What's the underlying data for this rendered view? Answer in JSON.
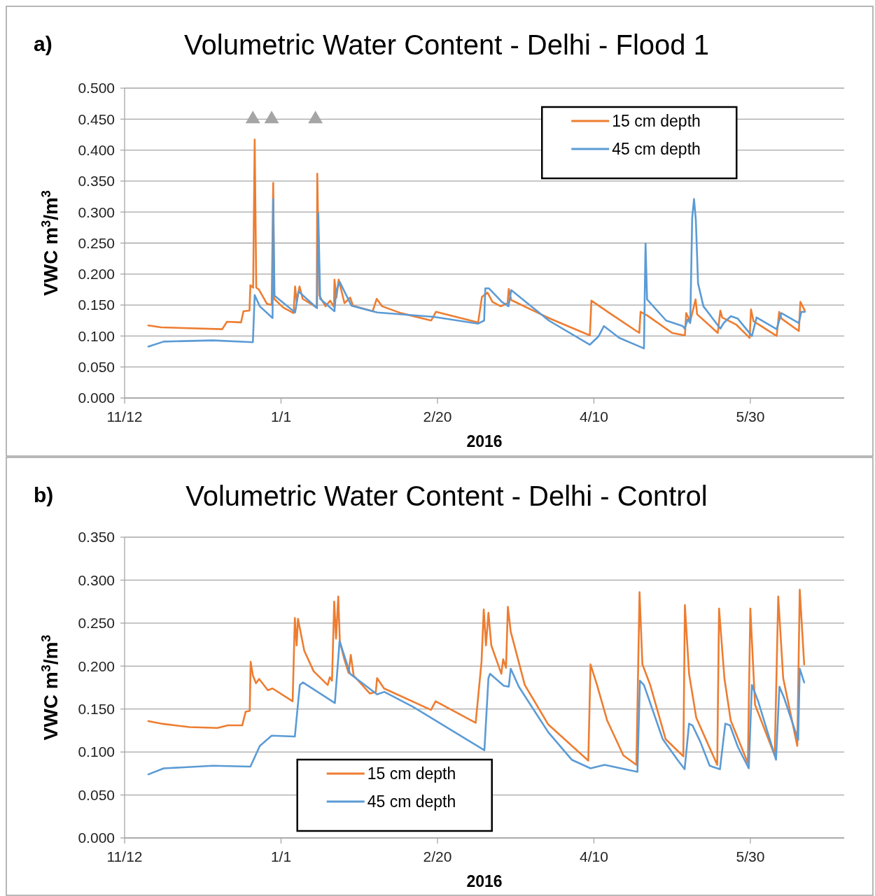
{
  "chart_data": [
    {
      "type": "line",
      "title": "Volumetric Water Content - Delhi - Flood 1",
      "annotations": [
        "a)"
      ],
      "xlabel": "2016",
      "ylabel": "VWC  m$^{3}$/m$^{3}$",
      "xlim": [
        "2015-11-12",
        "2016-06-29"
      ],
      "xticks": [
        {
          "value": "2015-11-12",
          "label": "11/12"
        },
        {
          "value": "2016-01-01",
          "label": "1/1"
        },
        {
          "value": "2016-02-20",
          "label": "2/20"
        },
        {
          "value": "2016-04-10",
          "label": "4/10"
        },
        {
          "value": "2016-05-30",
          "label": "5/30"
        }
      ],
      "ylim": [
        0,
        0.5
      ],
      "yticks": [
        {
          "value": 0,
          "label": "0.000"
        },
        {
          "value": 0.05,
          "label": "0.050"
        },
        {
          "value": 0.1,
          "label": "0.100"
        },
        {
          "value": 0.15,
          "label": "0.150"
        },
        {
          "value": 0.2,
          "label": "0.200"
        },
        {
          "value": 0.25,
          "label": "0.250"
        },
        {
          "value": 0.3,
          "label": "0.300"
        },
        {
          "value": 0.35,
          "label": "0.350"
        },
        {
          "value": 0.4,
          "label": "0.400"
        },
        {
          "value": 0.45,
          "label": "0.450"
        },
        {
          "value": 0.5,
          "label": "0.500"
        }
      ],
      "grid": "y",
      "legend": "top right",
      "series": [
        {
          "name": "15 cm depth",
          "color": "#ed7d31",
          "x": [
            "2015-11-19T14:00",
            "2015-11-23T17:00",
            "2015-12-13T05:00",
            "2015-12-14T17:00",
            "2015-12-19T05:00",
            "2015-12-20T00:00",
            "2015-12-21T22:00",
            "2015-12-22T05:00",
            "2015-12-23T02:00",
            "2015-12-23T14:00",
            "2015-12-24T02:00",
            "2015-12-24T22:00",
            "2015-12-27T12:00",
            "2015-12-29T00:00",
            "2015-12-29T12:00",
            "2015-12-29T19:00",
            "2016-01-01T17:00",
            "2016-01-05T00:00",
            "2016-01-05T12:00",
            "2016-01-06T00:00",
            "2016-01-06T22:00",
            "2016-01-07T22:00",
            "2016-01-12T10:00",
            "2016-01-12T14:00",
            "2016-01-12T19:00",
            "2016-01-13T07:00",
            "2016-01-15T05:00",
            "2016-01-16T17:00",
            "2016-01-17T22:00",
            "2016-01-18T02:00",
            "2016-01-18T17:00",
            "2016-01-19T10:00",
            "2016-01-21T07:00",
            "2016-01-23T02:00",
            "2016-01-24T00:00",
            "2016-01-30T07:00",
            "2016-01-31T14:00",
            "2016-02-02T07:00",
            "2016-02-08T07:00",
            "2016-02-18T00:00",
            "2016-02-19T12:00",
            "2016-03-04T00:00",
            "2016-03-05T05:00",
            "2016-03-07T00:00",
            "2016-03-08T14:00",
            "2016-03-11T05:00",
            "2016-03-13T10:00",
            "2016-03-13T19:00",
            "2016-03-14T14:00",
            "2016-03-26T14:00",
            "2016-04-08T17:00",
            "2016-04-09T05:00",
            "2016-04-15T00:00",
            "2016-04-24T12:00",
            "2016-04-24T22:00",
            "2016-04-27T02:00",
            "2016-05-05T00:00",
            "2016-05-09T02:00",
            "2016-05-09T12:00",
            "2016-05-10T19:00",
            "2016-05-12T12:00",
            "2016-05-13T00:00",
            "2016-05-19T14:00",
            "2016-05-20T10:00",
            "2016-05-21T00:00",
            "2016-05-25T14:00",
            "2016-05-29T19:00",
            "2016-05-30T05:00",
            "2016-05-31T00:00",
            "2016-06-07T10:00",
            "2016-06-08T05:00",
            "2016-06-09T00:00",
            "2016-06-14T12:00",
            "2016-06-15T00:00",
            "2016-06-16T10:00"
          ],
          "values": [
            0.117,
            0.114,
            0.111,
            0.123,
            0.122,
            0.14,
            0.141,
            0.182,
            0.178,
            0.417,
            0.178,
            0.175,
            0.152,
            0.15,
            0.347,
            0.16,
            0.146,
            0.137,
            0.18,
            0.155,
            0.18,
            0.16,
            0.146,
            0.362,
            0.3,
            0.165,
            0.148,
            0.157,
            0.147,
            0.191,
            0.162,
            0.191,
            0.153,
            0.162,
            0.149,
            0.14,
            0.16,
            0.148,
            0.137,
            0.125,
            0.139,
            0.122,
            0.163,
            0.17,
            0.155,
            0.148,
            0.153,
            0.176,
            0.158,
            0.129,
            0.101,
            0.157,
            0.137,
            0.105,
            0.139,
            0.133,
            0.105,
            0.101,
            0.137,
            0.124,
            0.159,
            0.135,
            0.105,
            0.141,
            0.13,
            0.118,
            0.097,
            0.143,
            0.124,
            0.1,
            0.139,
            0.128,
            0.108,
            0.155,
            0.141
          ]
        },
        {
          "name": "45 cm depth",
          "color": "#5b9bd5",
          "x": [
            "2015-11-19T14:00",
            "2015-11-24T12:00",
            "2015-12-10T05:00",
            "2015-12-23T00:00",
            "2015-12-23T14:00",
            "2015-12-25T05:00",
            "2015-12-29T07:00",
            "2015-12-29T12:00",
            "2015-12-29T22:00",
            "2016-01-05T12:00",
            "2016-01-06T14:00",
            "2016-01-12T12:00",
            "2016-01-12T22:00",
            "2016-01-13T12:00",
            "2016-01-18T02:00",
            "2016-01-18T14:00",
            "2016-01-19T19:00",
            "2016-01-23T12:00",
            "2016-01-31T19:00",
            "2016-02-18T19:00",
            "2016-03-04T00:00",
            "2016-03-05T22:00",
            "2016-03-06T07:00",
            "2016-03-07T10:00",
            "2016-03-11T14:00",
            "2016-03-13T17:00",
            "2016-03-14T14:00",
            "2016-03-26T14:00",
            "2016-04-08T17:00",
            "2016-04-11T10:00",
            "2016-04-13T05:00",
            "2016-04-18T02:00",
            "2016-04-26T00:00",
            "2016-04-26T12:00",
            "2016-04-27T00:00",
            "2016-05-03T02:00",
            "2016-05-08T10:00",
            "2016-05-09T00:00",
            "2016-05-10T00:00",
            "2016-05-10T19:00",
            "2016-05-11T10:00",
            "2016-05-12T00:00",
            "2016-05-12T14:00",
            "2016-05-13T07:00",
            "2016-05-15T00:00",
            "2016-05-20T10:00",
            "2016-05-21T12:00",
            "2016-05-23T19:00",
            "2016-05-26T00:00",
            "2016-05-30T12:00",
            "2016-06-01T00:00",
            "2016-06-07T10:00",
            "2016-06-08T22:00",
            "2016-06-14T12:00",
            "2016-06-15T07:00",
            "2016-06-16T10:00"
          ],
          "values": [
            0.083,
            0.091,
            0.093,
            0.09,
            0.166,
            0.148,
            0.129,
            0.321,
            0.165,
            0.138,
            0.172,
            0.145,
            0.298,
            0.16,
            0.14,
            0.172,
            0.187,
            0.149,
            0.138,
            0.131,
            0.12,
            0.125,
            0.177,
            0.177,
            0.155,
            0.148,
            0.174,
            0.125,
            0.086,
            0.099,
            0.116,
            0.097,
            0.08,
            0.249,
            0.159,
            0.125,
            0.116,
            0.112,
            0.127,
            0.121,
            0.291,
            0.321,
            0.287,
            0.185,
            0.148,
            0.112,
            0.121,
            0.132,
            0.128,
            0.1,
            0.13,
            0.111,
            0.137,
            0.121,
            0.139,
            0.139
          ]
        },
        {
          "type": "scatter",
          "marker": "triangle",
          "color": "#a5a5a5",
          "x": [
            "2015-12-23",
            "2015-12-29",
            "2016-01-12"
          ],
          "values": [
            0.45,
            0.45,
            0.45
          ]
        }
      ]
    },
    {
      "type": "line",
      "title": "Volumetric Water Content - Delhi - Control",
      "annotations": [
        "b)"
      ],
      "xlabel": "2016",
      "ylabel": "VWC  m$^{3}$/m$^{3}$",
      "xlim": [
        "2015-11-12",
        "2016-06-29"
      ],
      "xticks": [
        {
          "value": "2015-11-12",
          "label": "11/12"
        },
        {
          "value": "2016-01-01",
          "label": "1/1"
        },
        {
          "value": "2016-02-20",
          "label": "2/20"
        },
        {
          "value": "2016-04-10",
          "label": "4/10"
        },
        {
          "value": "2016-05-30",
          "label": "5/30"
        }
      ],
      "ylim": [
        0,
        0.35
      ],
      "yticks": [
        {
          "value": 0,
          "label": "0.000"
        },
        {
          "value": 0.05,
          "label": "0.050"
        },
        {
          "value": 0.1,
          "label": "0.100"
        },
        {
          "value": 0.15,
          "label": "0.150"
        },
        {
          "value": 0.2,
          "label": "0.200"
        },
        {
          "value": 0.25,
          "label": "0.250"
        },
        {
          "value": 0.3,
          "label": "0.300"
        },
        {
          "value": 0.35,
          "label": "0.350"
        }
      ],
      "grid": "y",
      "legend": "bottom left",
      "series": [
        {
          "name": "15 cm depth",
          "color": "#ed7d31",
          "x": [
            "2015-11-19T14:00",
            "2015-11-23T17:00",
            "2015-12-02T17:00",
            "2015-12-11T17:00",
            "2015-12-15T00:00",
            "2015-12-19T14:00",
            "2015-12-20T17:00",
            "2015-12-22T00:00",
            "2015-12-22T07:00",
            "2015-12-23T00:00",
            "2015-12-24T00:00",
            "2015-12-25T00:00",
            "2015-12-27T19:00",
            "2015-12-29T07:00",
            "2016-01-04T17:00",
            "2016-01-05T10:00",
            "2016-01-06T00:00",
            "2016-01-06T10:00",
            "2016-01-08T10:00",
            "2016-01-11T10:00",
            "2016-01-15T22:00",
            "2016-01-16T14:00",
            "2016-01-17T07:00",
            "2016-01-18T00:00",
            "2016-01-18T14:00",
            "2016-01-19T07:00",
            "2016-01-19T19:00",
            "2016-01-21T05:00",
            "2016-01-22T14:00",
            "2016-01-23T07:00",
            "2016-01-24T05:00",
            "2016-01-29T10:00",
            "2016-01-31T07:00",
            "2016-01-31T17:00",
            "2016-02-02T22:00",
            "2016-02-17T22:00",
            "2016-02-19T10:00",
            "2016-03-03T05:00",
            "2016-03-05T02:00",
            "2016-03-05T19:00",
            "2016-03-06T12:00",
            "2016-03-07T07:00",
            "2016-03-08T05:00",
            "2016-03-11T10:00",
            "2016-03-12T00:00",
            "2016-03-12T22:00",
            "2016-03-13T12:00",
            "2016-03-14T10:00",
            "2016-03-18T22:00",
            "2016-03-26T10:00",
            "2016-04-08T05:00",
            "2016-04-08T22:00",
            "2016-04-11T00:00",
            "2016-04-14T05:00",
            "2016-04-19T10:00",
            "2016-04-23T14:00",
            "2016-04-24T14:00",
            "2016-04-25T12:00",
            "2016-04-28T00:00",
            "2016-05-02T22:00",
            "2016-05-08T14:00",
            "2016-05-09T02:00",
            "2016-05-10T10:00",
            "2016-05-12T17:00",
            "2016-05-19T10:00",
            "2016-05-20T00:00",
            "2016-05-21T17:00",
            "2016-05-23T17:00",
            "2016-05-29T05:00",
            "2016-05-30T00:00",
            "2016-05-31T12:00",
            "2016-06-06T19:00",
            "2016-06-07T22:00",
            "2016-06-09T12:00",
            "2016-06-14T00:00",
            "2016-06-14T19:00",
            "2016-06-16T05:00"
          ],
          "values": [
            0.136,
            0.133,
            0.129,
            0.128,
            0.131,
            0.131,
            0.147,
            0.148,
            0.205,
            0.189,
            0.18,
            0.185,
            0.172,
            0.174,
            0.159,
            0.256,
            0.224,
            0.255,
            0.218,
            0.194,
            0.178,
            0.187,
            0.183,
            0.275,
            0.232,
            0.281,
            0.229,
            0.208,
            0.192,
            0.213,
            0.189,
            0.168,
            0.17,
            0.186,
            0.174,
            0.149,
            0.159,
            0.134,
            0.205,
            0.266,
            0.224,
            0.262,
            0.224,
            0.191,
            0.208,
            0.198,
            0.269,
            0.24,
            0.178,
            0.132,
            0.09,
            0.202,
            0.178,
            0.137,
            0.096,
            0.085,
            0.286,
            0.202,
            0.178,
            0.115,
            0.095,
            0.271,
            0.191,
            0.14,
            0.085,
            0.267,
            0.186,
            0.137,
            0.087,
            0.267,
            0.155,
            0.096,
            0.281,
            0.186,
            0.107,
            0.289,
            0.202
          ]
        },
        {
          "name": "45 cm depth",
          "color": "#5b9bd5",
          "x": [
            "2015-11-19T14:00",
            "2015-11-24T12:00",
            "2015-12-10T05:00",
            "2015-12-22T05:00",
            "2015-12-25T05:00",
            "2015-12-29T00:00",
            "2016-01-05T10:00",
            "2016-01-07T00:00",
            "2016-01-08T00:00",
            "2016-01-18T05:00",
            "2016-01-19T17:00",
            "2016-01-23T02:00",
            "2016-01-31T17:00",
            "2016-02-03T00:00",
            "2016-02-12T00:00",
            "2016-03-06T00:00",
            "2016-03-07T07:00",
            "2016-03-07T19:00",
            "2016-03-12T05:00",
            "2016-03-13T19:00",
            "2016-03-14T10:00",
            "2016-03-17T00:00",
            "2016-03-26T10:00",
            "2016-04-02T22:00",
            "2016-04-08T22:00",
            "2016-04-13T10:00",
            "2016-04-23T22:00",
            "2016-04-24T17:00",
            "2016-04-26T00:00",
            "2016-05-02T00:00",
            "2016-05-06T17:00",
            "2016-05-09T00:00",
            "2016-05-10T10:00",
            "2016-05-11T12:00",
            "2016-05-14T00:00",
            "2016-05-17T00:00",
            "2016-05-20T07:00",
            "2016-05-22T00:00",
            "2016-05-23T12:00",
            "2016-05-26T00:00",
            "2016-05-29T12:00",
            "2016-05-30T12:00",
            "2016-06-01T12:00",
            "2016-06-07T05:00",
            "2016-06-08T07:00",
            "2016-06-09T19:00",
            "2016-06-14T07:00",
            "2016-06-14T19:00",
            "2016-06-16T05:00"
          ],
          "values": [
            0.074,
            0.081,
            0.084,
            0.083,
            0.107,
            0.119,
            0.118,
            0.178,
            0.181,
            0.157,
            0.229,
            0.191,
            0.167,
            0.17,
            0.153,
            0.102,
            0.186,
            0.191,
            0.177,
            0.176,
            0.197,
            0.176,
            0.123,
            0.091,
            0.081,
            0.085,
            0.077,
            0.183,
            0.178,
            0.115,
            0.091,
            0.08,
            0.133,
            0.131,
            0.112,
            0.084,
            0.08,
            0.133,
            0.131,
            0.106,
            0.081,
            0.178,
            0.159,
            0.091,
            0.176,
            0.163,
            0.114,
            0.197,
            0.181
          ]
        }
      ]
    }
  ]
}
